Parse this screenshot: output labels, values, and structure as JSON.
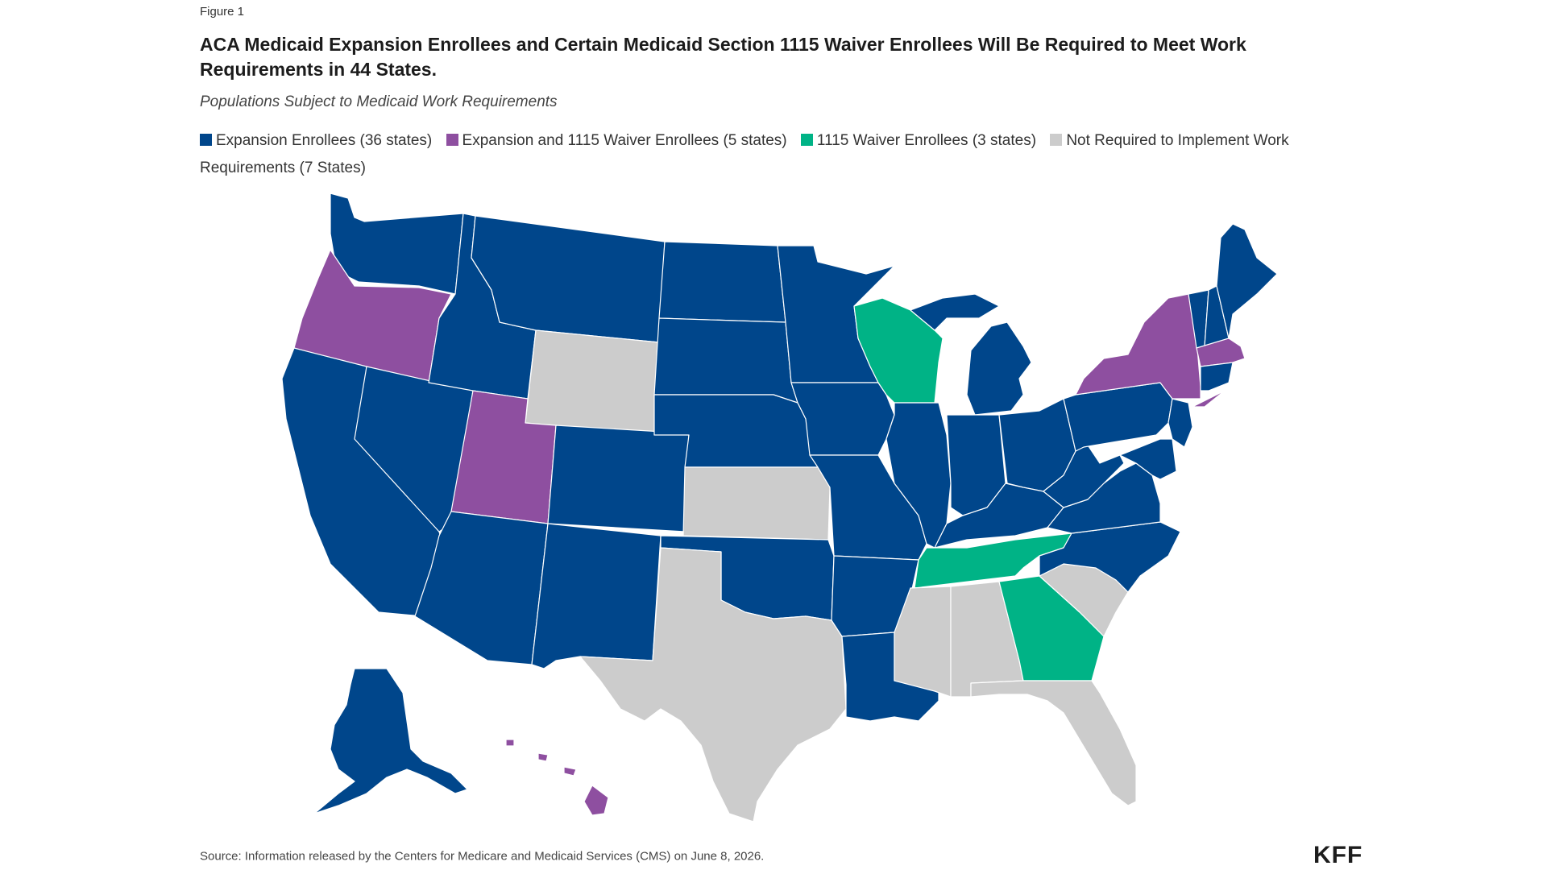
{
  "figure_label": "Figure 1",
  "title": "ACA Medicaid Expansion Enrollees and Certain Medicaid Section 1115 Waiver Enrollees Will Be Required to Meet Work Requirements in 44 States.",
  "subtitle": "Populations Subject to Medicaid Work Requirements",
  "legend": [
    {
      "label": "Expansion Enrollees (36 states)",
      "color": "#00468b"
    },
    {
      "label": "Expansion and 1115 Waiver Enrollees (5 states)",
      "color": "#8e4fa0"
    },
    {
      "label": "1115 Waiver Enrollees (3 states)",
      "color": "#00b386"
    },
    {
      "label": "Not Required to Implement Work Requirements (7 States)",
      "color": "#cccccc"
    }
  ],
  "colors": {
    "expansion": "#00468b",
    "expansion_and_waiver": "#8e4fa0",
    "waiver": "#00b386",
    "not_required": "#cccccc"
  },
  "source": "Source: Information released by the Centers for Medicare and Medicaid Services (CMS) on June 8, 2026.",
  "logo": "KFF"
}
